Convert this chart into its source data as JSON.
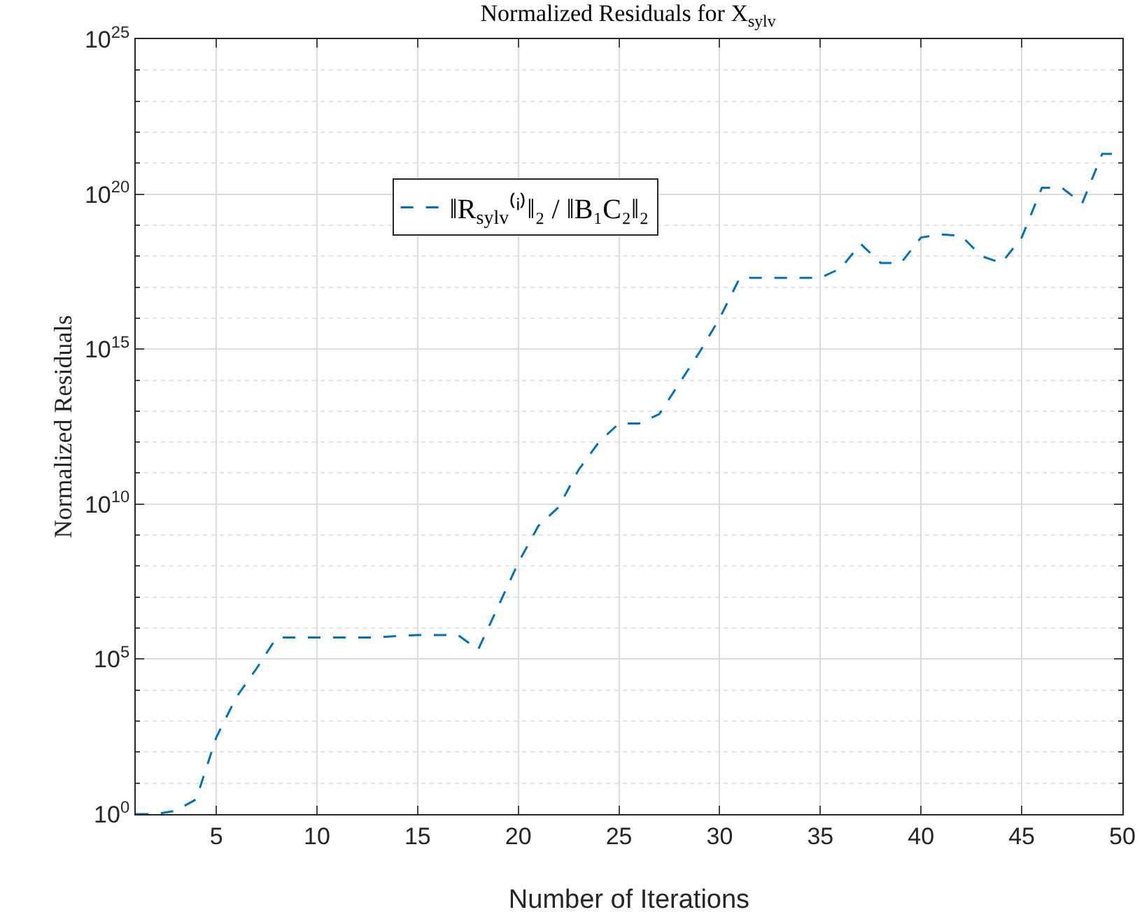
{
  "chart_data": {
    "type": "line",
    "title": "Normalized Residuals for X$_{sylv}$",
    "xlabel": "Number of Iterations",
    "ylabel": "Normalized Residuals",
    "x": [
      1,
      2,
      3,
      4,
      5,
      6,
      7,
      8,
      9,
      10,
      11,
      12,
      13,
      14,
      15,
      16,
      17,
      18,
      19,
      20,
      21,
      22,
      23,
      24,
      25,
      26,
      27,
      28,
      29,
      30,
      31,
      32,
      33,
      34,
      35,
      36,
      37,
      38,
      39,
      40,
      41,
      42,
      43,
      44,
      45,
      46,
      47,
      48,
      49,
      50
    ],
    "series": [
      {
        "name": "‖R$_{sylv}$⁽ⁱ⁾‖₂ / ‖B₁C₂‖₂",
        "color": "#0072bd",
        "values": [
          1,
          1,
          1.3,
          3,
          300,
          6000,
          50000.0,
          500000.0,
          500000.0,
          500000.0,
          500000.0,
          500000.0,
          500000.0,
          560000.0,
          600000.0,
          600000.0,
          600000.0,
          200000.0,
          5000000.0,
          130000000.0,
          2000000000.0,
          8000000000.0,
          130000000000.0,
          1000000000000.0,
          4000000000000.0,
          4000000000000.0,
          8000000000000.0,
          80000000000000.0,
          800000000000000.0,
          1e+16,
          2e+17,
          2e+17,
          2e+17,
          2e+17,
          2e+17,
          4e+17,
          2.5e+18,
          6e+17,
          6e+17,
          4e+18,
          5e+18,
          4.5e+18,
          1e+18,
          6e+17,
          4e+18,
          1.6e+20,
          1.6e+20,
          5e+19,
          2e+21,
          2e+21
        ]
      }
    ],
    "log": "y",
    "xlim": [
      1,
      50
    ],
    "xticks": [
      5,
      10,
      15,
      20,
      25,
      30,
      35,
      40,
      45,
      50
    ],
    "ylim": [
      1,
      1e+25
    ],
    "yticks": [
      {
        "value": 1,
        "label": "10$^{0}$"
      },
      {
        "value": 100000.0,
        "label": "10$^{5}$"
      },
      {
        "value": 10000000000.0,
        "label": "10$^{10}$"
      },
      {
        "value": 1000000000000000.0,
        "label": "10$^{15}$"
      },
      {
        "value": 1e+20,
        "label": "10$^{20}$"
      },
      {
        "value": 1e+25,
        "label": "10$^{25}$"
      }
    ],
    "grid": true,
    "legend": "top left",
    "marker": "none",
    "line_style": "dashed"
  }
}
